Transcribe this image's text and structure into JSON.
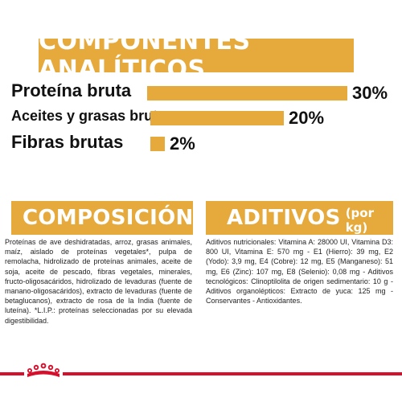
{
  "analytics": {
    "title": "COMPONENTES ANALÍTICOS",
    "rows": [
      {
        "label": "Proteína bruta",
        "percent": "30%",
        "value": 30
      },
      {
        "label": "Aceites y grasas brutos",
        "percent": "20%",
        "value": 20
      },
      {
        "label": "Fibras brutas",
        "percent": "2%",
        "value": 2
      }
    ]
  },
  "composition": {
    "title": "COMPOSICIÓN",
    "text": "Proteínas de ave deshidratadas, arroz, grasas animales, maíz, aislado de proteínas vegetales*, pulpa de remolacha, hidrolizado de proteínas animales, aceite de soja, aceite de pescado, fibras vegetales, minerales, fructo-oligosacáridos, hidrolizado de levaduras (fuente de manano-oligosacáridos), extracto de levaduras (fuente de betaglucanos), extracto de rosa de la India (fuente de luteína). *L.I.P.: proteínas seleccionadas por su elevada digestibilidad."
  },
  "additives": {
    "title": "ADITIVOS",
    "unit": "(por kg)",
    "text": "Aditivos nutricionales: Vitamina A: 28000 UI, Vitamina D3: 800 UI, Vitamina E: 570 mg - E1 (Hierro): 39 mg, E2 (Yodo): 3,9 mg, E4 (Cobre): 12 mg, E5 (Manganeso): 51 mg, E6 (Zinc): 107 mg, E8 (Selenio): 0,08 mg - Aditivos tecnológicos: Clinoptilolita de origen sedimentario: 10 g - Aditivos organolépticos: Extracto de yuca: 125 mg - Conservantes - Antioxidantes."
  },
  "colors": {
    "accent": "#e6a93b",
    "brand_red": "#d5102d"
  },
  "icons": {
    "logo": "royal-canin-crown-logo"
  }
}
